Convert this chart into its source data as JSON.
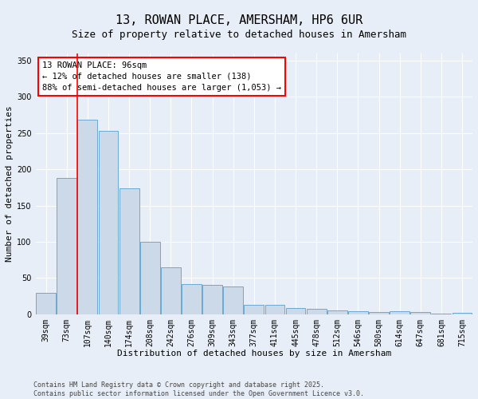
{
  "title1": "13, ROWAN PLACE, AMERSHAM, HP6 6UR",
  "title2": "Size of property relative to detached houses in Amersham",
  "xlabel": "Distribution of detached houses by size in Amersham",
  "ylabel": "Number of detached properties",
  "categories": [
    "39sqm",
    "73sqm",
    "107sqm",
    "140sqm",
    "174sqm",
    "208sqm",
    "242sqm",
    "276sqm",
    "309sqm",
    "343sqm",
    "377sqm",
    "411sqm",
    "445sqm",
    "478sqm",
    "512sqm",
    "546sqm",
    "580sqm",
    "614sqm",
    "647sqm",
    "681sqm",
    "715sqm"
  ],
  "values": [
    30,
    188,
    268,
    253,
    174,
    100,
    65,
    42,
    41,
    38,
    13,
    13,
    9,
    7,
    5,
    4,
    3,
    4,
    3,
    1,
    2
  ],
  "bar_color": "#ccd9e8",
  "bar_edge_color": "#6aaad4",
  "annotation_text": "13 ROWAN PLACE: 96sqm\n← 12% of detached houses are smaller (138)\n88% of semi-detached houses are larger (1,053) →",
  "annotation_box_color": "white",
  "annotation_box_edge_color": "red",
  "vline_color": "red",
  "vline_x": 1.5,
  "ylim": [
    0,
    360
  ],
  "yticks": [
    0,
    50,
    100,
    150,
    200,
    250,
    300,
    350
  ],
  "background_color": "#e8eef7",
  "grid_color": "#ffffff",
  "footer_text": "Contains HM Land Registry data © Crown copyright and database right 2025.\nContains public sector information licensed under the Open Government Licence v3.0.",
  "title1_fontsize": 11,
  "title2_fontsize": 9,
  "xlabel_fontsize": 8,
  "ylabel_fontsize": 8,
  "tick_fontsize": 7,
  "annotation_fontsize": 7.5,
  "footer_fontsize": 6
}
